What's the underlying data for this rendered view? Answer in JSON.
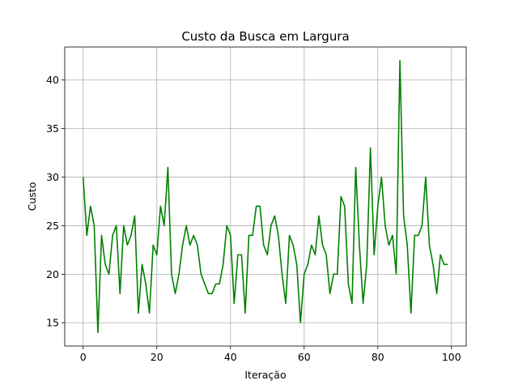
{
  "chart_data": {
    "type": "line",
    "title": "Custo da Busca em Largura",
    "xlabel": "Iteração",
    "ylabel": "Custo",
    "xlim": [
      -5,
      104
    ],
    "ylim": [
      12.6,
      43.4
    ],
    "xticks": [
      0,
      20,
      40,
      60,
      80,
      100
    ],
    "yticks": [
      15,
      20,
      25,
      30,
      35,
      40
    ],
    "grid": true,
    "series": [
      {
        "color": "#008000",
        "x": [
          0,
          1,
          2,
          3,
          4,
          5,
          6,
          7,
          8,
          9,
          10,
          11,
          12,
          13,
          14,
          15,
          16,
          17,
          18,
          19,
          20,
          21,
          22,
          23,
          24,
          25,
          26,
          27,
          28,
          29,
          30,
          31,
          32,
          33,
          34,
          35,
          36,
          37,
          38,
          39,
          40,
          41,
          42,
          43,
          44,
          45,
          46,
          47,
          48,
          49,
          50,
          51,
          52,
          53,
          54,
          55,
          56,
          57,
          58,
          59,
          60,
          61,
          62,
          63,
          64,
          65,
          66,
          67,
          68,
          69,
          70,
          71,
          72,
          73,
          74,
          75,
          76,
          77,
          78,
          79,
          80,
          81,
          82,
          83,
          84,
          85,
          86,
          87,
          88,
          89,
          90,
          91,
          92,
          93,
          94,
          95,
          96,
          97,
          98,
          99
        ],
        "values": [
          30,
          24,
          27,
          25,
          14,
          24,
          21,
          20,
          24,
          25,
          18,
          25,
          23,
          24,
          26,
          16,
          21,
          19,
          16,
          23,
          22,
          27,
          25,
          31,
          20,
          18,
          20,
          23,
          25,
          23,
          24,
          23,
          20,
          19,
          18,
          18,
          19,
          19,
          21,
          25,
          24,
          17,
          22,
          22,
          16,
          24,
          24,
          27,
          27,
          23,
          22,
          25,
          26,
          24,
          20,
          17,
          24,
          23,
          21,
          15,
          20,
          21,
          23,
          22,
          26,
          23,
          22,
          18,
          20,
          20,
          28,
          27,
          19,
          17,
          31,
          23,
          17,
          21,
          33,
          22,
          27,
          30,
          25,
          23,
          24,
          20,
          42,
          26,
          23,
          16,
          24,
          24,
          25,
          30,
          23,
          21,
          18,
          22,
          21,
          21
        ]
      }
    ]
  }
}
